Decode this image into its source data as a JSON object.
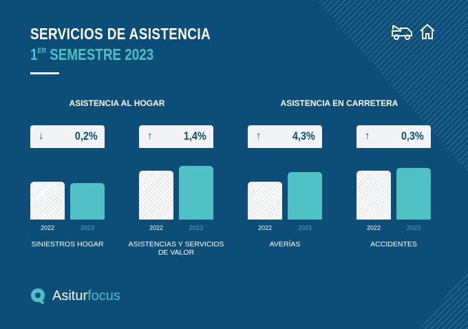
{
  "header": {
    "title": "SERVICIOS DE ASISTENCIA",
    "subtitle_ord": "1",
    "subtitle_sup": "ER",
    "subtitle": "SEMESTRE 2023"
  },
  "sections": [
    "ASISTENCIA AL HOGAR",
    "ASISTENCIA EN CARRETERA"
  ],
  "colors": {
    "background": "#0c4e77",
    "accent": "#4fc0c4"
  },
  "chart_data": {
    "type": "bar",
    "note": "bar heights relative (index units, no axis shown)",
    "series_names": [
      "2022",
      "2023"
    ],
    "groups": [
      {
        "label": "SINIESTROS HOGAR",
        "change": "0,2%",
        "direction": "down",
        "values": [
          55,
          53
        ],
        "years": [
          "2022",
          "2023"
        ]
      },
      {
        "label": "ASISTENCIAS Y SERVICIOS DE VALOR",
        "change": "1,4%",
        "direction": "up",
        "values": [
          71,
          78
        ],
        "years": [
          "2022",
          "2023"
        ]
      },
      {
        "label": "AVERÍAS",
        "change": "4,3%",
        "direction": "up",
        "values": [
          55,
          69
        ],
        "years": [
          "2022",
          "2023"
        ]
      },
      {
        "label": "ACCIDENTES",
        "change": "0,3%",
        "direction": "up",
        "values": [
          71,
          75
        ],
        "years": [
          "2022",
          "2023"
        ]
      }
    ]
  },
  "logo": {
    "part1": "Asitur",
    "part2": "focus"
  }
}
